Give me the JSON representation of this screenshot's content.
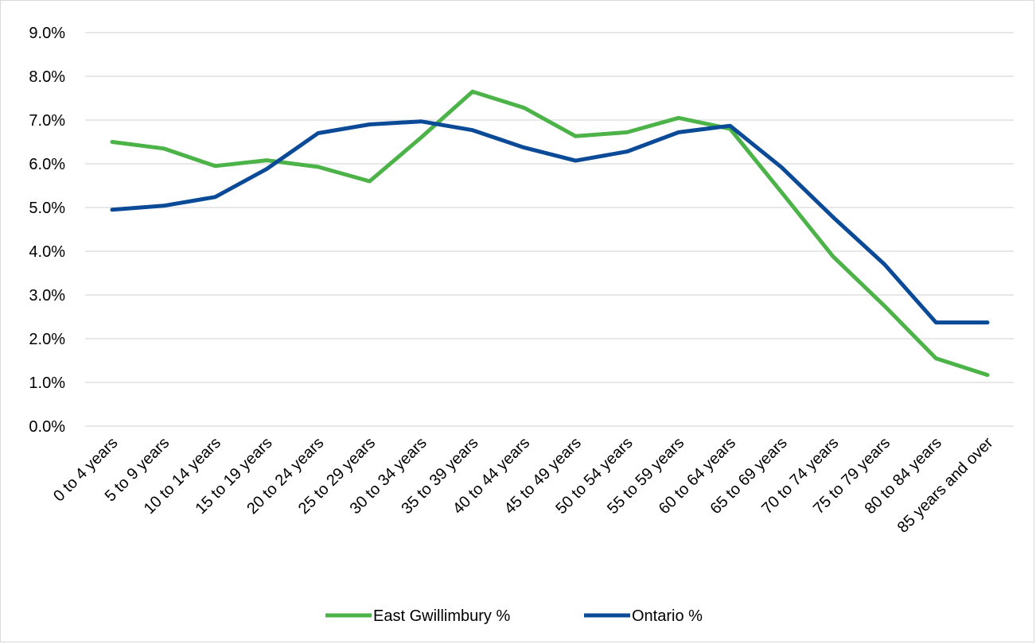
{
  "chart_data": {
    "type": "line",
    "title": "",
    "xlabel": "",
    "ylabel": "",
    "categories": [
      "0 to 4 years",
      "5 to 9 years",
      "10 to 14 years",
      "15 to 19 years",
      "20 to 24 years",
      "25 to 29 years",
      "30 to 34 years",
      "35 to 39 years",
      "40 to 44 years",
      "45 to 49 years",
      "50 to 54 years",
      "55 to 59 years",
      "60 to 64 years",
      "65 to 69 years",
      "70 to 74 years",
      "75 to 79 years",
      "80 to 84 years",
      "85 years and over"
    ],
    "series": [
      {
        "name": "East Gwillimbury %",
        "color": "#4bb347",
        "values": [
          6.5,
          6.35,
          5.95,
          6.08,
          5.93,
          5.6,
          6.6,
          7.65,
          7.28,
          6.63,
          6.72,
          7.05,
          6.8,
          5.35,
          3.88,
          2.75,
          1.55,
          1.17
        ]
      },
      {
        "name": "Ontario %",
        "color": "#0b4a97",
        "values": [
          4.95,
          5.04,
          5.24,
          5.88,
          6.7,
          6.9,
          6.97,
          6.77,
          6.37,
          6.07,
          6.28,
          6.72,
          6.87,
          5.92,
          4.78,
          3.7,
          2.37,
          2.37
        ]
      }
    ],
    "y_ticks": [
      "0.0%",
      "1.0%",
      "2.0%",
      "3.0%",
      "4.0%",
      "5.0%",
      "6.0%",
      "7.0%",
      "8.0%",
      "9.0%"
    ],
    "ylim": [
      0,
      9
    ],
    "grid": true,
    "legend_position": "bottom"
  }
}
